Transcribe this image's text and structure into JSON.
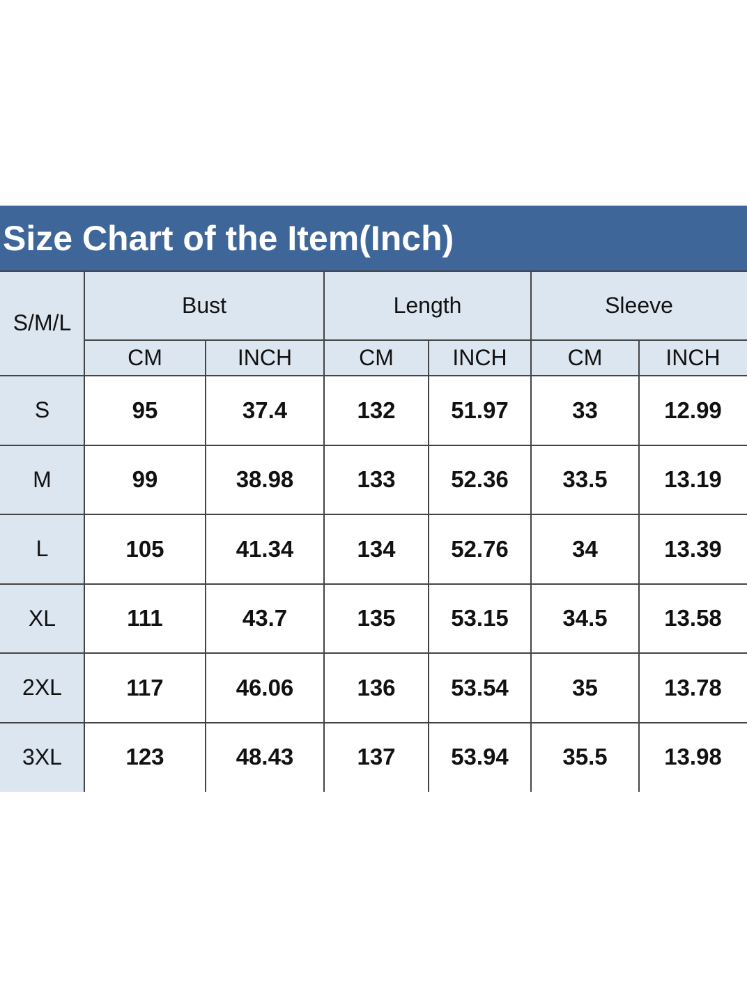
{
  "title": "Size Chart of the Item(Inch)",
  "table": {
    "size_label": "S/M/L",
    "groups": [
      {
        "label": "Bust",
        "units": [
          "CM",
          "INCH"
        ]
      },
      {
        "label": "Length",
        "units": [
          "CM",
          "INCH"
        ]
      },
      {
        "label": "Sleeve",
        "units": [
          "CM",
          "INCH"
        ]
      }
    ],
    "rows": [
      [
        "S",
        95,
        37.4,
        132,
        51.97,
        33,
        12.99
      ],
      [
        "M",
        99,
        38.98,
        133,
        52.36,
        33.5,
        13.19
      ],
      [
        "L",
        105,
        41.34,
        134,
        52.76,
        34,
        13.39
      ],
      [
        "XL",
        111,
        43.7,
        135,
        53.15,
        34.5,
        13.58
      ],
      [
        "2XL",
        117,
        46.06,
        136,
        53.54,
        35,
        13.78
      ],
      [
        "3XL",
        123,
        48.43,
        137,
        53.94,
        35.5,
        13.98
      ]
    ]
  }
}
